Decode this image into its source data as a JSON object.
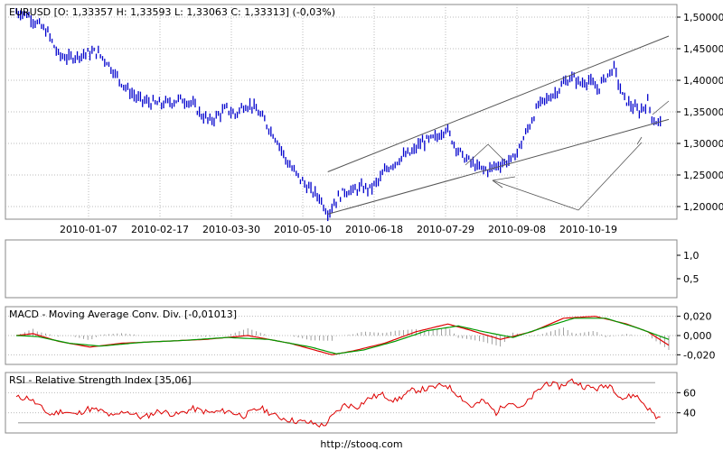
{
  "footer": "http://stooq.com",
  "colors": {
    "price": "#0000cc",
    "macd": "#dd0000",
    "signal": "#009900",
    "hist": "#888888",
    "rsi": "#dd0000",
    "channel": "#555555",
    "grid": "#bbbbbb"
  },
  "chart_data": [
    {
      "type": "candlestick",
      "title": "EURUSD [O: 1,33357  H: 1,33593  L: 1,33063  C: 1,33313] (-0,03%)",
      "x_ticks": [
        "2010-01-07",
        "2010-02-17",
        "2010-03-30",
        "2010-05-10",
        "2010-06-18",
        "2010-07-29",
        "2010-09-08",
        "2010-10-19"
      ],
      "y_ticks": [
        "1,50000",
        "1,45000",
        "1,40000",
        "1,35000",
        "1,30000",
        "1,25000",
        "1,20000"
      ],
      "ylim": [
        1.18,
        1.52
      ],
      "trend": [
        [
          0,
          1.508
        ],
        [
          5,
          1.505
        ],
        [
          10,
          1.49
        ],
        [
          15,
          1.475
        ],
        [
          20,
          1.44
        ],
        [
          25,
          1.435
        ],
        [
          30,
          1.44
        ],
        [
          38,
          1.445
        ],
        [
          43,
          1.43
        ],
        [
          48,
          1.405
        ],
        [
          53,
          1.385
        ],
        [
          58,
          1.37
        ],
        [
          63,
          1.365
        ],
        [
          68,
          1.362
        ],
        [
          73,
          1.365
        ],
        [
          78,
          1.37
        ],
        [
          83,
          1.365
        ],
        [
          88,
          1.345
        ],
        [
          92,
          1.335
        ],
        [
          96,
          1.345
        ],
        [
          100,
          1.355
        ],
        [
          104,
          1.345
        ],
        [
          108,
          1.36
        ],
        [
          112,
          1.36
        ],
        [
          116,
          1.345
        ],
        [
          120,
          1.325
        ],
        [
          124,
          1.305
        ],
        [
          128,
          1.275
        ],
        [
          132,
          1.255
        ],
        [
          136,
          1.24
        ],
        [
          140,
          1.225
        ],
        [
          144,
          1.215
        ],
        [
          148,
          1.19
        ],
        [
          152,
          1.21
        ],
        [
          156,
          1.225
        ],
        [
          160,
          1.225
        ],
        [
          164,
          1.23
        ],
        [
          168,
          1.228
        ],
        [
          172,
          1.24
        ],
        [
          176,
          1.26
        ],
        [
          180,
          1.27
        ],
        [
          184,
          1.28
        ],
        [
          188,
          1.285
        ],
        [
          192,
          1.3
        ],
        [
          196,
          1.305
        ],
        [
          200,
          1.31
        ],
        [
          204,
          1.325
        ],
        [
          208,
          1.3
        ],
        [
          212,
          1.28
        ],
        [
          216,
          1.27
        ],
        [
          220,
          1.26
        ],
        [
          224,
          1.258
        ],
        [
          228,
          1.265
        ],
        [
          232,
          1.27
        ],
        [
          236,
          1.275
        ],
        [
          240,
          1.3
        ],
        [
          244,
          1.33
        ],
        [
          248,
          1.36
        ],
        [
          252,
          1.37
        ],
        [
          256,
          1.38
        ],
        [
          260,
          1.395
        ],
        [
          264,
          1.405
        ],
        [
          268,
          1.395
        ],
        [
          272,
          1.4
        ],
        [
          276,
          1.385
        ],
        [
          280,
          1.405
        ],
        [
          284,
          1.42
        ],
        [
          288,
          1.375
        ],
        [
          292,
          1.36
        ],
        [
          296,
          1.35
        ],
        [
          300,
          1.365
        ],
        [
          303,
          1.335
        ],
        [
          306,
          1.333
        ]
      ],
      "annotations": {
        "channel_upper": [
          [
            148,
            1.255
          ],
          [
            310,
            1.47
          ]
        ],
        "channel_lower": [
          [
            148,
            1.188
          ],
          [
            310,
            1.338
          ]
        ]
      }
    },
    {
      "type": "line",
      "title": "",
      "y_ticks": [
        "1,0",
        "0,5"
      ]
    },
    {
      "type": "line",
      "title": "MACD - Moving Average Conv. Div. [-0,01013]",
      "y_ticks": [
        "0,020",
        "0,000",
        "-0,020"
      ],
      "ylim": [
        -0.03,
        0.03
      ],
      "series": [
        {
          "values": [
            [
              0,
              0.0
            ],
            [
              8,
              0.002
            ],
            [
              20,
              -0.006
            ],
            [
              35,
              -0.012
            ],
            [
              50,
              -0.008
            ],
            [
              70,
              -0.006
            ],
            [
              90,
              -0.004
            ],
            [
              110,
              0.0
            ],
            [
              130,
              -0.008
            ],
            [
              150,
              -0.02
            ],
            [
              160,
              -0.016
            ],
            [
              175,
              -0.008
            ],
            [
              190,
              0.004
            ],
            [
              205,
              0.012
            ],
            [
              215,
              0.006
            ],
            [
              230,
              -0.004
            ],
            [
              245,
              0.004
            ],
            [
              260,
              0.018
            ],
            [
              275,
              0.02
            ],
            [
              290,
              0.012
            ],
            [
              300,
              0.004
            ],
            [
              310,
              -0.01
            ]
          ]
        },
        {
          "values": [
            [
              0,
              0.0
            ],
            [
              10,
              -0.001
            ],
            [
              25,
              -0.008
            ],
            [
              40,
              -0.011
            ],
            [
              60,
              -0.007
            ],
            [
              80,
              -0.005
            ],
            [
              100,
              -0.002
            ],
            [
              120,
              -0.004
            ],
            [
              140,
              -0.012
            ],
            [
              152,
              -0.019
            ],
            [
              165,
              -0.015
            ],
            [
              180,
              -0.006
            ],
            [
              195,
              0.005
            ],
            [
              210,
              0.01
            ],
            [
              222,
              0.004
            ],
            [
              236,
              -0.002
            ],
            [
              250,
              0.008
            ],
            [
              265,
              0.018
            ],
            [
              280,
              0.018
            ],
            [
              295,
              0.008
            ],
            [
              310,
              -0.004
            ]
          ]
        }
      ]
    },
    {
      "type": "line",
      "title": "RSI - Relative Strength Index [35,06]",
      "y_ticks": [
        "60",
        "40"
      ],
      "ylim": [
        20,
        80
      ],
      "series": [
        {
          "values": [
            [
              0,
              55
            ],
            [
              6,
              55
            ],
            [
              10,
              48
            ],
            [
              16,
              38
            ],
            [
              22,
              42
            ],
            [
              28,
              38
            ],
            [
              34,
              44
            ],
            [
              40,
              42
            ],
            [
              46,
              36
            ],
            [
              52,
              42
            ],
            [
              60,
              35
            ],
            [
              68,
              42
            ],
            [
              76,
              38
            ],
            [
              84,
              44
            ],
            [
              92,
              40
            ],
            [
              100,
              42
            ],
            [
              108,
              37
            ],
            [
              116,
              45
            ],
            [
              124,
              36
            ],
            [
              132,
              32
            ],
            [
              140,
              30
            ],
            [
              146,
              27
            ],
            [
              150,
              36
            ],
            [
              156,
              48
            ],
            [
              162,
              46
            ],
            [
              168,
              55
            ],
            [
              174,
              58
            ],
            [
              180,
              52
            ],
            [
              188,
              62
            ],
            [
              196,
              64
            ],
            [
              204,
              68
            ],
            [
              210,
              58
            ],
            [
              216,
              46
            ],
            [
              222,
              52
            ],
            [
              228,
              40
            ],
            [
              234,
              52
            ],
            [
              240,
              44
            ],
            [
              246,
              58
            ],
            [
              252,
              70
            ],
            [
              258,
              66
            ],
            [
              264,
              72
            ],
            [
              270,
              66
            ],
            [
              276,
              64
            ],
            [
              282,
              68
            ],
            [
              288,
              54
            ],
            [
              294,
              58
            ],
            [
              300,
              45
            ],
            [
              304,
              36
            ],
            [
              306,
              35
            ]
          ]
        }
      ]
    }
  ]
}
